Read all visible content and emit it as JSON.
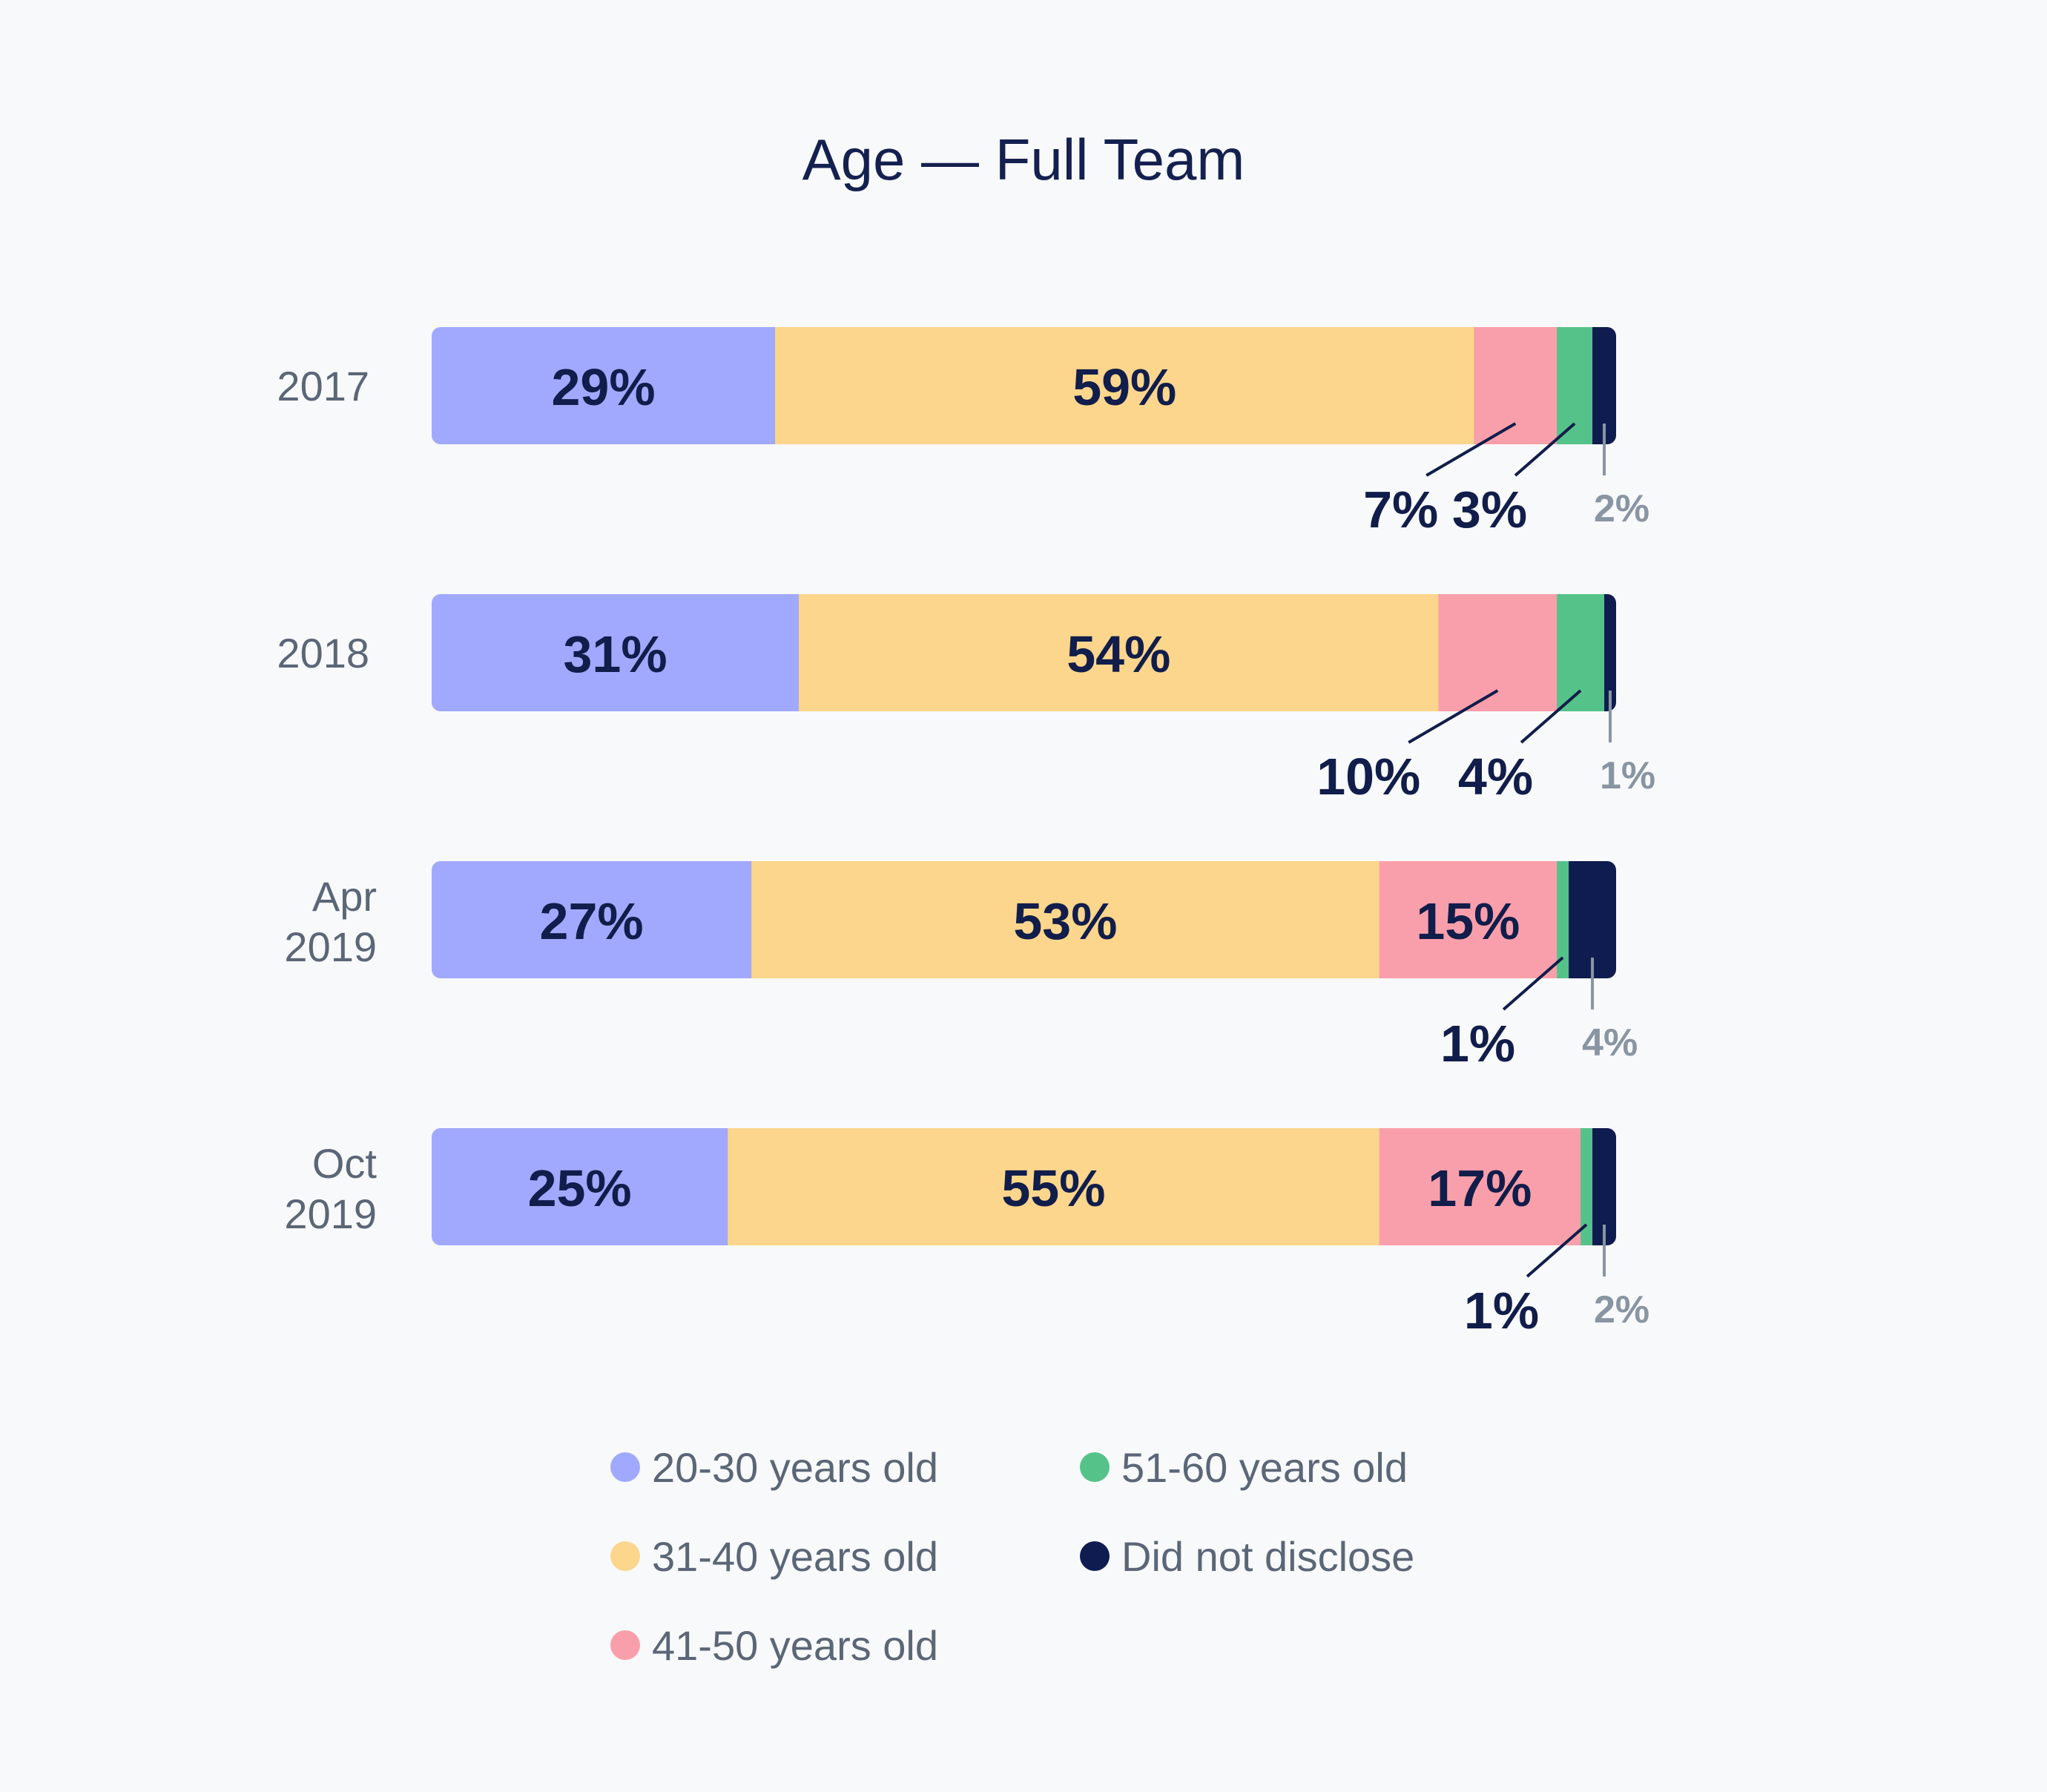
{
  "chart_data": {
    "type": "bar",
    "orientation": "horizontal",
    "stacked": true,
    "title": "Age — Full Team",
    "categories": [
      "2017",
      "2018",
      "Apr 2019",
      "Oct 2019"
    ],
    "series": [
      {
        "name": "20-30 years old",
        "color": "#a1a9fe",
        "values": [
          29,
          31,
          27,
          25
        ]
      },
      {
        "name": "31-40 years old",
        "color": "#fbd68c",
        "values": [
          59,
          54,
          53,
          55
        ]
      },
      {
        "name": "41-50 years old",
        "color": "#f99fab",
        "values": [
          7,
          10,
          15,
          17
        ]
      },
      {
        "name": "51-60 years old",
        "color": "#55c389",
        "values": [
          3,
          4,
          1,
          1
        ]
      },
      {
        "name": "Did not disclose",
        "color": "#0e1c4f",
        "values": [
          2,
          1,
          4,
          2
        ]
      }
    ],
    "value_labels": [
      [
        "29%",
        "59%",
        "7%",
        "3%",
        "2%"
      ],
      [
        "31%",
        "54%",
        "10%",
        "4%",
        "1%"
      ],
      [
        "27%",
        "53%",
        "15%",
        "1%",
        "4%"
      ],
      [
        "25%",
        "55%",
        "17%",
        "1%",
        "2%"
      ]
    ],
    "xlim": [
      0,
      100
    ],
    "grid": false,
    "legend_position": "bottom"
  }
}
